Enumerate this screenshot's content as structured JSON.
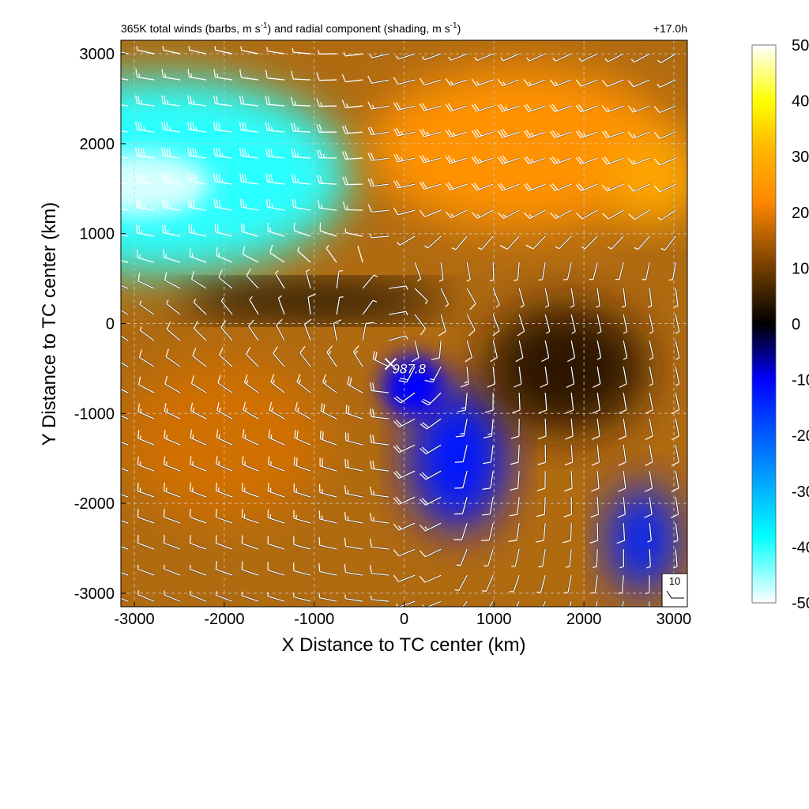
{
  "chart_data": {
    "type": "heatmap",
    "title": "365K total winds (barbs, m s⁻¹) and radial component (shading, m s⁻¹)",
    "title_parts": {
      "a": "365K total winds (barbs, m s",
      "a_sup": "-1",
      "b": ") and radial component (shading, m s",
      "b_sup": "-1",
      "c": ")"
    },
    "forecast_time": "+17.0h",
    "xlabel": "X Distance to TC center (km)",
    "ylabel": "Y Distance to TC center (km)",
    "xlim": [
      -3150,
      3150
    ],
    "ylim": [
      -3150,
      3150
    ],
    "xticks": [
      -3000,
      -2000,
      -1000,
      0,
      1000,
      2000,
      3000
    ],
    "yticks": [
      -3000,
      -2000,
      -1000,
      0,
      1000,
      2000,
      3000
    ],
    "grid": true,
    "colorbar": {
      "ticks": [
        50,
        40,
        30,
        20,
        10,
        0,
        -10,
        -20,
        -30,
        -40,
        -50
      ],
      "min": -50,
      "max": 50,
      "position": "right"
    },
    "center_marker": {
      "x": -150,
      "y": -450,
      "label": "987.8"
    },
    "reference_barb": {
      "label": "10",
      "position": "bottom-right"
    },
    "regions": [
      {
        "name": "inflow-northwest",
        "cx": -2700,
        "cy": 1650,
        "rx": 2100,
        "ry": 1100,
        "value": -40
      },
      {
        "name": "inflow-west-core",
        "cx": -2950,
        "cy": 1550,
        "rx": 800,
        "ry": 350,
        "value": -48
      },
      {
        "name": "outflow-northeast",
        "cx": 1300,
        "cy": 1950,
        "rx": 1700,
        "ry": 900,
        "value": 24
      },
      {
        "name": "outflow-east",
        "cx": 2800,
        "cy": 1600,
        "rx": 500,
        "ry": 500,
        "value": 28
      },
      {
        "name": "outflow-southwest",
        "cx": -2000,
        "cy": -1300,
        "rx": 1100,
        "ry": 900,
        "value": 18
      },
      {
        "name": "inflow-south-center",
        "cx": 600,
        "cy": -1500,
        "rx": 550,
        "ry": 800,
        "value": -12
      },
      {
        "name": "inflow-near-center",
        "cx": 100,
        "cy": -700,
        "rx": 350,
        "ry": 350,
        "value": -10
      },
      {
        "name": "inflow-southeast",
        "cx": 2650,
        "cy": -2400,
        "rx": 400,
        "ry": 600,
        "value": -14
      },
      {
        "name": "near-zero-band",
        "cx": -1000,
        "cy": 250,
        "rx": 1500,
        "ry": 180,
        "value": 0
      },
      {
        "name": "weak-outflow-east",
        "cx": 1800,
        "cy": -500,
        "rx": 900,
        "ry": 700,
        "value": 4
      }
    ],
    "barb_spacing_km": 290,
    "barbs": [
      {
        "region": "northwest",
        "direction_from_deg": 270,
        "speed": 40
      },
      {
        "region": "northeast",
        "direction_from_deg": 250,
        "speed": 30
      },
      {
        "region": "south",
        "direction_from_deg": 300,
        "speed": 15
      },
      {
        "region": "center",
        "direction": "cyclonic",
        "speed": 10
      }
    ]
  },
  "colors": {
    "cmap_negative_strong": "#ffffff",
    "cmap_negative_mid": "#00ffff",
    "cmap_negative_low": "#0000ff",
    "cmap_zero": "#000000",
    "cmap_positive_low": "#cc6600",
    "cmap_positive_mid": "#ff9900",
    "cmap_positive_strong": "#ffff00",
    "cmap_positive_max": "#ffffff"
  }
}
